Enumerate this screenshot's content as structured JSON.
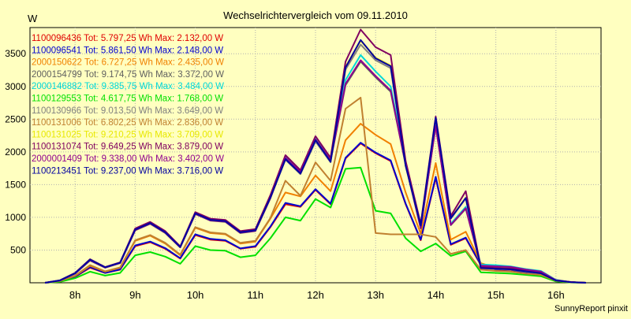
{
  "chart_data": {
    "type": "line",
    "title": "Wechselrichtervergleich vom 09.11.2010",
    "ylabel": "W",
    "xlabel": "",
    "footer": "SunnyReport pinxit",
    "x_ticks": [
      "8h",
      "9h",
      "10h",
      "11h",
      "12h",
      "13h",
      "14h",
      "15h",
      "16h"
    ],
    "y_ticks": [
      "500",
      "1000",
      "1500",
      "2000",
      "2500",
      "3000",
      "3500"
    ],
    "y_tick_values": [
      500,
      1000,
      1500,
      2000,
      2500,
      3000,
      3500
    ],
    "ylim": [
      0,
      3900
    ],
    "xlim": [
      7.25,
      16.75
    ],
    "grid": true,
    "legend_position": "top-left",
    "x": [
      7.5,
      7.75,
      8.0,
      8.25,
      8.5,
      8.75,
      9.0,
      9.25,
      9.5,
      9.75,
      10.0,
      10.25,
      10.5,
      10.75,
      11.0,
      11.25,
      11.5,
      11.75,
      12.0,
      12.25,
      12.5,
      12.75,
      13.0,
      13.25,
      13.5,
      13.75,
      14.0,
      14.25,
      14.5,
      14.75,
      15.0,
      15.25,
      15.5,
      15.75,
      16.0,
      16.25,
      16.5
    ],
    "series": [
      {
        "name": "1100096436 Tot: 5.797,25 Wh Max: 2.132,00 W",
        "color": "#e00000",
        "values": [
          0,
          20,
          90,
          230,
          150,
          200,
          560,
          620,
          520,
          370,
          730,
          660,
          640,
          520,
          550,
          850,
          1200,
          1160,
          1420,
          1200,
          1900,
          2130,
          1980,
          1860,
          1200,
          650,
          1600,
          580,
          680,
          270,
          200,
          195,
          150,
          130,
          30,
          10,
          0
        ]
      },
      {
        "name": "1100096541 Tot: 5.861,50 Wh Max: 2.148,00 W",
        "color": "#0000d0",
        "values": [
          0,
          20,
          95,
          240,
          150,
          205,
          570,
          630,
          530,
          375,
          740,
          670,
          650,
          525,
          560,
          860,
          1220,
          1170,
          1430,
          1210,
          1910,
          2140,
          1990,
          1870,
          1210,
          660,
          1620,
          590,
          690,
          275,
          205,
          200,
          155,
          135,
          30,
          10,
          0
        ]
      },
      {
        "name": "2000150622 Tot: 6.727,25 Wh Max: 2.435,00 W",
        "color": "#f08000",
        "values": [
          0,
          25,
          105,
          260,
          170,
          230,
          640,
          720,
          600,
          420,
          840,
          760,
          740,
          600,
          630,
          980,
          1380,
          1320,
          1640,
          1400,
          2180,
          2430,
          2260,
          2120,
          1380,
          750,
          1830,
          660,
          780,
          300,
          230,
          220,
          170,
          150,
          35,
          10,
          0
        ]
      },
      {
        "name": "2000154799 Tot: 9.174,75 Wh Max: 3.372,00 W",
        "color": "#606060",
        "values": [
          0,
          35,
          140,
          340,
          230,
          300,
          800,
          900,
          760,
          540,
          1050,
          950,
          930,
          760,
          790,
          1290,
          1900,
          1680,
          2180,
          1860,
          3020,
          3380,
          3140,
          2920,
          1800,
          830,
          2390,
          880,
          1130,
          260,
          250,
          240,
          200,
          170,
          40,
          10,
          0
        ]
      },
      {
        "name": "2000146882 Tot: 9.385,75 Wh Max: 3.484,00 W",
        "color": "#00d8d8",
        "values": [
          0,
          40,
          150,
          360,
          240,
          310,
          820,
          920,
          780,
          550,
          1070,
          970,
          950,
          780,
          810,
          1320,
          1940,
          1720,
          2230,
          1900,
          3100,
          3480,
          3230,
          3000,
          1850,
          850,
          2450,
          900,
          1160,
          280,
          270,
          250,
          210,
          180,
          45,
          10,
          0
        ]
      },
      {
        "name": "1100129553 Tot: 4.617,75 Wh Max: 1.768,00 W",
        "color": "#00e000",
        "values": [
          0,
          15,
          70,
          170,
          110,
          150,
          420,
          470,
          400,
          290,
          560,
          500,
          490,
          390,
          420,
          680,
          1000,
          950,
          1280,
          1150,
          1740,
          1760,
          1100,
          1060,
          680,
          480,
          600,
          410,
          480,
          160,
          150,
          140,
          120,
          100,
          20,
          5,
          0
        ]
      },
      {
        "name": "1100130966 Tot: 9.013,50 Wh Max: 3.649,00 W",
        "color": "#808080",
        "values": [
          0,
          35,
          145,
          350,
          235,
          305,
          810,
          910,
          770,
          545,
          1060,
          960,
          940,
          770,
          800,
          1300,
          1880,
          1660,
          2160,
          1840,
          3260,
          3640,
          3400,
          3280,
          1780,
          870,
          2380,
          980,
          1290,
          220,
          210,
          200,
          170,
          140,
          35,
          10,
          0
        ]
      },
      {
        "name": "1100131006 Tot: 6.802,25 Wh Max: 2.836,00 W",
        "color": "#c08030",
        "values": [
          0,
          25,
          110,
          270,
          175,
          235,
          650,
          730,
          610,
          430,
          850,
          770,
          750,
          610,
          640,
          990,
          1560,
          1330,
          1840,
          1560,
          2660,
          2830,
          760,
          740,
          740,
          740,
          700,
          440,
          500,
          200,
          180,
          170,
          140,
          120,
          30,
          10,
          0
        ]
      },
      {
        "name": "1100131025 Tot: 9.210,25 Wh Max: 3.709,00 W",
        "color": "#e8e800",
        "values": [
          0,
          35,
          145,
          350,
          235,
          305,
          810,
          910,
          770,
          545,
          1060,
          960,
          940,
          770,
          800,
          1300,
          1900,
          1680,
          2190,
          1860,
          3300,
          3700,
          3440,
          3320,
          1800,
          880,
          2400,
          990,
          1300,
          230,
          220,
          210,
          180,
          150,
          35,
          10,
          0
        ]
      },
      {
        "name": "1100131074 Tot: 9.649,25 Wh Max: 3.879,00 W",
        "color": "#800060",
        "values": [
          0,
          38,
          150,
          360,
          240,
          312,
          830,
          930,
          790,
          556,
          1080,
          980,
          960,
          790,
          820,
          1340,
          1950,
          1720,
          2240,
          1910,
          3380,
          3870,
          3600,
          3480,
          1860,
          900,
          2540,
          1020,
          1400,
          240,
          225,
          215,
          185,
          155,
          38,
          12,
          0
        ]
      },
      {
        "name": "2000001409 Tot: 9.338,00 Wh Max: 3.402,00 W",
        "color": "#900090",
        "values": [
          0,
          36,
          142,
          345,
          232,
          302,
          805,
          905,
          765,
          542,
          1055,
          955,
          935,
          765,
          795,
          1295,
          1910,
          1690,
          2190,
          1870,
          3040,
          3400,
          3160,
          2940,
          1810,
          835,
          2400,
          885,
          1140,
          262,
          252,
          242,
          202,
          172,
          40,
          10,
          0
        ]
      },
      {
        "name": "1100213451 Tot: 9.237,00 Wh Max: 3.716,00 W",
        "color": "#0000a0",
        "values": [
          0,
          35,
          145,
          352,
          236,
          306,
          812,
          912,
          772,
          546,
          1062,
          962,
          942,
          772,
          802,
          1302,
          1890,
          1670,
          2180,
          1850,
          3290,
          3710,
          3430,
          3310,
          1790,
          875,
          2520,
          985,
          1295,
          225,
          215,
          205,
          175,
          145,
          35,
          10,
          0
        ]
      }
    ]
  }
}
